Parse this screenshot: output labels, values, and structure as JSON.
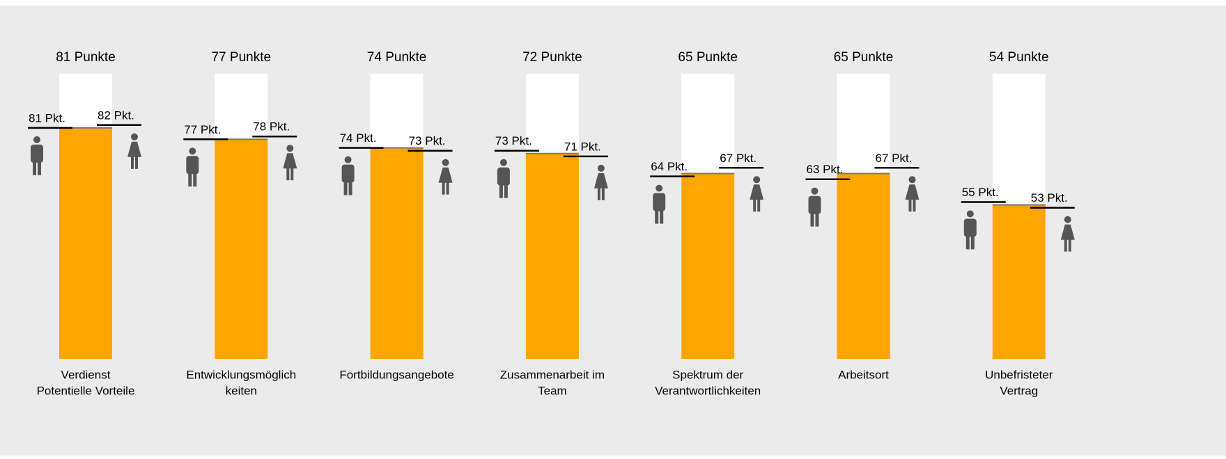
{
  "chart_data": {
    "type": "bar",
    "categories": [
      [
        "Verdienst",
        "Potentielle Vorteile"
      ],
      [
        "Entwicklungsmöglich",
        "keiten"
      ],
      [
        "Fortbildungsangebote"
      ],
      [
        "Zusammenarbeit im",
        "Team"
      ],
      [
        "Spektrum der",
        "Verantwortlichkeiten"
      ],
      [
        "Arbeitsort"
      ],
      [
        "Unbefristeter",
        "Vertrag"
      ]
    ],
    "values": [
      81,
      77,
      74,
      72,
      65,
      65,
      54
    ],
    "value_labels": [
      "81 Punkte",
      "77 Punkte",
      "74 Punkte",
      "72 Punkte",
      "65 Punkte",
      "65 Punkte",
      "54 Punkte"
    ],
    "color": "#ffa500",
    "series": [
      {
        "color": "#000000",
        "values": [
          81,
          77,
          74,
          73,
          64,
          63,
          55
        ],
        "value_labels": [
          "81 Pkt.",
          "77 Pkt.",
          "74 Pkt.",
          "73 Pkt.",
          "64 Pkt.",
          "63 Pkt.",
          "55 Pkt."
        ]
      },
      {
        "color": "#000000",
        "values": [
          82,
          78,
          73,
          71,
          67,
          67,
          53
        ],
        "value_labels": [
          "82 Pkt.",
          "78 Pkt.",
          "73 Pkt.",
          "71 Pkt.",
          "67 Pkt.",
          "67 Pkt.",
          "53 Pkt."
        ]
      }
    ],
    "ylim": [
      0,
      100
    ]
  }
}
